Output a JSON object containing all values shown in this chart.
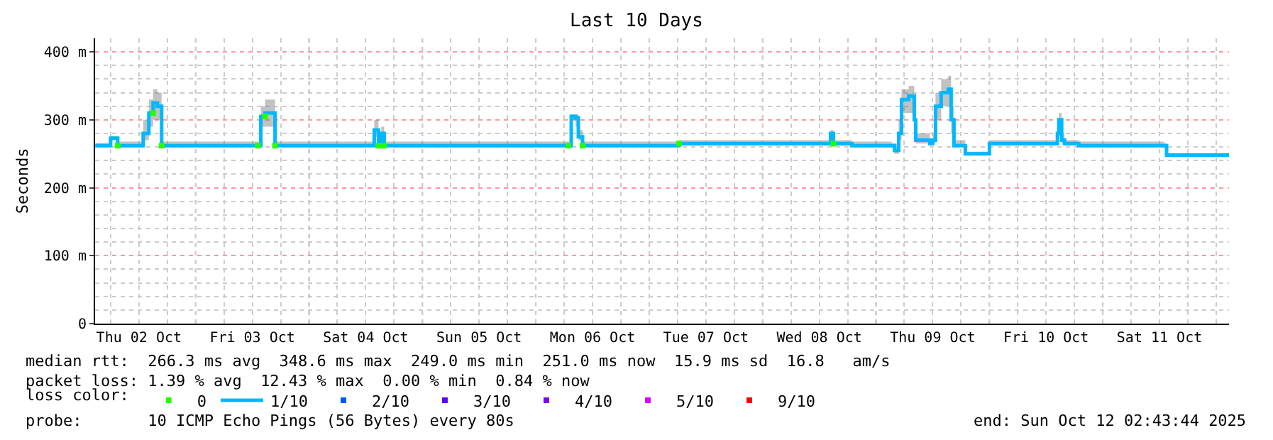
{
  "chart_data": {
    "type": "step",
    "title": "Last 10 Days",
    "ylabel": "Seconds",
    "legend_title": "loss color:",
    "legend": "bottom left",
    "grid": true,
    "marker": "none",
    "line_style": "solid",
    "xlim": [
      "2025-10-02T02:43",
      "2025-10-12T02:43"
    ],
    "xticks": [
      {
        "value": "2025-10-02T12:00",
        "label": "Thu 02 Oct"
      },
      {
        "value": "2025-10-03T12:00",
        "label": "Fri 03 Oct"
      },
      {
        "value": "2025-10-04T12:00",
        "label": "Sat 04 Oct"
      },
      {
        "value": "2025-10-05T12:00",
        "label": "Sun 05 Oct"
      },
      {
        "value": "2025-10-06T12:00",
        "label": "Mon 06 Oct"
      },
      {
        "value": "2025-10-07T12:00",
        "label": "Tue 07 Oct"
      },
      {
        "value": "2025-10-08T12:00",
        "label": "Wed 08 Oct"
      },
      {
        "value": "2025-10-09T12:00",
        "label": "Thu 09 Oct"
      },
      {
        "value": "2025-10-10T12:00",
        "label": "Fri 10 Oct"
      },
      {
        "value": "2025-10-11T12:00",
        "label": "Sat 11 Oct"
      }
    ],
    "ylim": [
      0,
      420
    ],
    "yticks": [
      0,
      {
        "value": 100,
        "label": "100 m"
      },
      {
        "value": 200,
        "label": "200 m"
      },
      {
        "value": 300,
        "label": "300 m"
      },
      {
        "value": 400,
        "label": "400 m"
      }
    ],
    "x": [
      "2025-10-02T02:45",
      "2025-10-02T06:00",
      "2025-10-02T07:30",
      "2025-10-02T12:54",
      "2025-10-02T14:06",
      "2025-10-02T15:00",
      "2025-10-02T15:54",
      "2025-10-02T16:48",
      "2025-10-03T13:12",
      "2025-10-03T13:48",
      "2025-10-03T14:42",
      "2025-10-03T15:54",
      "2025-10-03T16:48",
      "2025-10-04T13:48",
      "2025-10-04T14:42",
      "2025-10-04T15:18",
      "2025-10-04T15:54",
      "2025-10-06T06:54",
      "2025-10-06T07:30",
      "2025-10-06T08:24",
      "2025-10-06T09:00",
      "2025-10-06T09:54",
      "2025-10-07T06:18",
      "2025-10-08T14:24",
      "2025-10-08T15:00",
      "2025-10-08T18:54",
      "2025-10-09T03:18",
      "2025-10-09T03:54",
      "2025-10-09T04:48",
      "2025-10-09T05:24",
      "2025-10-09T06:54",
      "2025-10-09T08:06",
      "2025-10-09T08:24",
      "2025-10-09T11:24",
      "2025-10-09T12:00",
      "2025-10-09T12:36",
      "2025-10-09T13:48",
      "2025-10-09T15:18",
      "2025-10-09T15:54",
      "2025-10-09T16:30",
      "2025-10-09T18:54",
      "2025-10-09T23:42",
      "2025-10-10T00:00",
      "2025-10-10T12:54",
      "2025-10-10T14:24",
      "2025-10-10T14:42",
      "2025-10-10T15:18",
      "2025-10-10T15:54",
      "2025-10-10T18:54",
      "2025-10-11T12:54",
      "2025-10-11T13:30",
      "2025-10-12T02:43"
    ],
    "series": [
      {
        "name": "0",
        "type": "scatter",
        "marker": "square",
        "color": "#26ff00",
        "values": [
          null,
          null,
          262,
          null,
          null,
          310,
          null,
          262,
          262,
          null,
          305,
          null,
          262,
          null,
          262,
          null,
          262,
          262,
          null,
          null,
          null,
          262,
          265,
          null,
          265,
          null,
          null,
          null,
          null,
          null,
          null,
          null,
          null,
          null,
          null,
          null,
          null,
          null,
          null,
          null,
          null,
          null,
          null,
          null,
          null,
          null,
          null,
          null,
          null,
          null,
          null,
          null
        ]
      },
      {
        "name": "1/10",
        "color": "#00b8ff",
        "values": [
          262,
          273,
          262,
          280,
          310,
          325,
          320,
          262,
          262,
          305,
          310,
          310,
          262,
          285,
          262,
          280,
          262,
          262,
          305,
          303,
          275,
          262,
          265,
          280,
          265,
          262,
          262,
          255,
          280,
          330,
          335,
          300,
          270,
          265,
          270,
          320,
          340,
          345,
          300,
          262,
          250,
          250,
          265,
          265,
          280,
          300,
          270,
          265,
          262,
          262,
          248,
          251
        ],
        "lower": [
          260,
          270,
          260,
          270,
          290,
          300,
          300,
          260,
          260,
          290,
          290,
          290,
          260,
          275,
          260,
          270,
          260,
          260,
          300,
          290,
          270,
          260,
          262,
          275,
          262,
          260,
          260,
          250,
          270,
          310,
          310,
          280,
          265,
          262,
          265,
          300,
          320,
          320,
          280,
          260,
          248,
          248,
          262,
          262,
          275,
          290,
          265,
          262,
          260,
          260,
          246,
          249
        ],
        "upper": [
          266,
          276,
          268,
          300,
          330,
          345,
          340,
          268,
          268,
          320,
          330,
          330,
          268,
          300,
          268,
          290,
          268,
          268,
          308,
          308,
          285,
          268,
          270,
          285,
          270,
          268,
          266,
          265,
          300,
          345,
          350,
          320,
          280,
          270,
          280,
          340,
          360,
          365,
          320,
          270,
          253,
          253,
          270,
          270,
          290,
          310,
          280,
          270,
          268,
          266,
          250,
          253
        ]
      },
      {
        "name": "2/10",
        "type": "scatter",
        "marker": "square",
        "color": "#0059ff",
        "values": [
          null,
          null,
          null,
          null,
          null,
          null,
          null,
          null,
          null,
          null,
          null,
          null,
          null,
          null,
          null,
          null,
          null,
          null,
          null,
          null,
          null,
          null,
          null,
          null,
          null,
          null,
          null,
          null,
          null,
          null,
          null,
          null,
          null,
          null,
          null,
          null,
          null,
          null,
          null,
          null,
          null,
          null,
          null,
          null,
          null,
          null,
          null,
          null,
          null,
          null,
          null,
          null
        ]
      },
      {
        "name": "3/10",
        "type": "scatter",
        "marker": "square",
        "color": "#5e00ff",
        "values": [
          null,
          null,
          null,
          null,
          null,
          null,
          null,
          null,
          null,
          null,
          null,
          null,
          null,
          null,
          null,
          null,
          null,
          null,
          null,
          null,
          null,
          null,
          null,
          null,
          null,
          null,
          null,
          null,
          null,
          null,
          null,
          null,
          null,
          null,
          null,
          null,
          null,
          null,
          null,
          null,
          null,
          null,
          null,
          null,
          null,
          null,
          null,
          null,
          null,
          null,
          null,
          null
        ]
      },
      {
        "name": "4/10",
        "type": "scatter",
        "marker": "square",
        "color": "#7e00ff",
        "values": [
          null,
          null,
          null,
          null,
          null,
          null,
          null,
          null,
          null,
          null,
          null,
          null,
          null,
          null,
          null,
          null,
          null,
          null,
          null,
          null,
          null,
          null,
          null,
          null,
          null,
          null,
          null,
          null,
          null,
          null,
          null,
          null,
          null,
          null,
          null,
          null,
          null,
          null,
          null,
          null,
          null,
          null,
          null,
          null,
          null,
          null,
          null,
          null,
          null,
          null,
          null,
          null
        ]
      },
      {
        "name": "5/10",
        "type": "scatter",
        "marker": "square",
        "color": "#dd00ff",
        "values": [
          null,
          null,
          null,
          null,
          null,
          null,
          null,
          null,
          null,
          null,
          null,
          null,
          null,
          null,
          null,
          null,
          null,
          null,
          null,
          null,
          null,
          null,
          null,
          null,
          null,
          null,
          null,
          null,
          null,
          null,
          null,
          null,
          null,
          null,
          null,
          null,
          null,
          null,
          null,
          null,
          null,
          null,
          null,
          null,
          null,
          null,
          null,
          null,
          null,
          null,
          null,
          null
        ]
      },
      {
        "name": "9/10",
        "type": "scatter",
        "marker": "square",
        "color": "#ff0000",
        "values": [
          null,
          null,
          null,
          null,
          null,
          null,
          null,
          null,
          null,
          null,
          null,
          null,
          null,
          null,
          null,
          null,
          null,
          null,
          null,
          null,
          null,
          null,
          null,
          null,
          null,
          null,
          null,
          null,
          null,
          null,
          null,
          null,
          null,
          null,
          null,
          null,
          null,
          null,
          null,
          null,
          null,
          null,
          null,
          null,
          null,
          null,
          null,
          null,
          null,
          null,
          null,
          null
        ]
      }
    ],
    "ref_lines": [
      {
        "axis": "x",
        "value": "2025-10-03",
        "color": "#ff9999",
        "line_style": "dotted"
      },
      {
        "axis": "x",
        "value": "2025-10-04",
        "color": "#ff9999",
        "line_style": "dotted"
      },
      {
        "axis": "x",
        "value": "2025-10-05",
        "color": "#ff9999",
        "line_style": "dotted"
      },
      {
        "axis": "x",
        "value": "2025-10-06",
        "color": "#ff9999",
        "line_style": "dotted"
      },
      {
        "axis": "x",
        "value": "2025-10-07",
        "color": "#ff9999",
        "line_style": "dotted"
      },
      {
        "axis": "x",
        "value": "2025-10-08",
        "color": "#ff9999",
        "line_style": "dotted"
      },
      {
        "axis": "x",
        "value": "2025-10-09",
        "color": "#ff9999",
        "line_style": "dotted"
      },
      {
        "axis": "x",
        "value": "2025-10-10",
        "color": "#ff9999",
        "line_style": "dotted"
      },
      {
        "axis": "x",
        "value": "2025-10-11",
        "color": "#ff9999",
        "line_style": "dotted"
      }
    ],
    "annotations": [
      "median rtt:  266.3 ms avg  348.6 ms max  249.0 ms min  251.0 ms now  15.9 ms sd  16.8   am/s",
      "packet loss: 1.39 % avg  12.43 % max  0.00 % min  0.84 % now",
      "probe:       10 ICMP Echo Pings (56 Bytes) every 80s",
      "end: Sun Oct 12 02:43:44 2025"
    ]
  }
}
